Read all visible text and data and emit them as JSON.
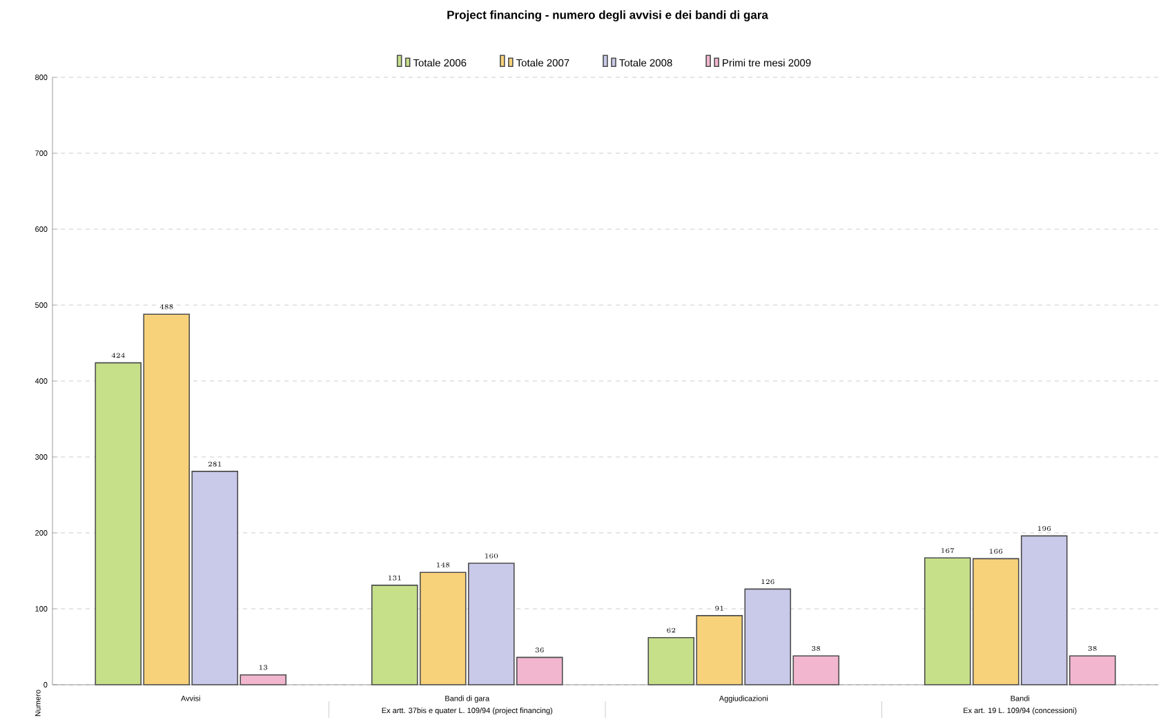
{
  "chart_data": {
    "type": "bar",
    "title": "Project financing - numero degli avvisi e dei bandi di gara",
    "ylabel": "Numero",
    "categories": [
      "Avvisi",
      "Bandi di gara",
      "Aggiudicazioni",
      "Bandi"
    ],
    "series": [
      {
        "name": "Totale 2006",
        "color": "#c6e08a",
        "values": [
          424,
          131,
          62,
          167
        ]
      },
      {
        "name": "Totale 2007",
        "color": "#f7d27a",
        "values": [
          488,
          148,
          91,
          166
        ]
      },
      {
        "name": "Totale 2008",
        "color": "#c9c9ea",
        "values": [
          281,
          160,
          126,
          196
        ]
      },
      {
        "name": "Primi tre mesi 2009",
        "color": "#f2b6cf",
        "values": [
          13,
          36,
          38,
          38
        ]
      }
    ],
    "annotations": [
      "Ex artt. 37bis e quater L. 109/94 (project financing)",
      "Ex art. 19 L. 109/94 (concessioni)"
    ],
    "ylim": [
      0,
      800
    ],
    "yticks": [
      0,
      100,
      200,
      300,
      400,
      500,
      600,
      700,
      800
    ],
    "grid": "y",
    "legend": "top",
    "data_labels": true
  }
}
